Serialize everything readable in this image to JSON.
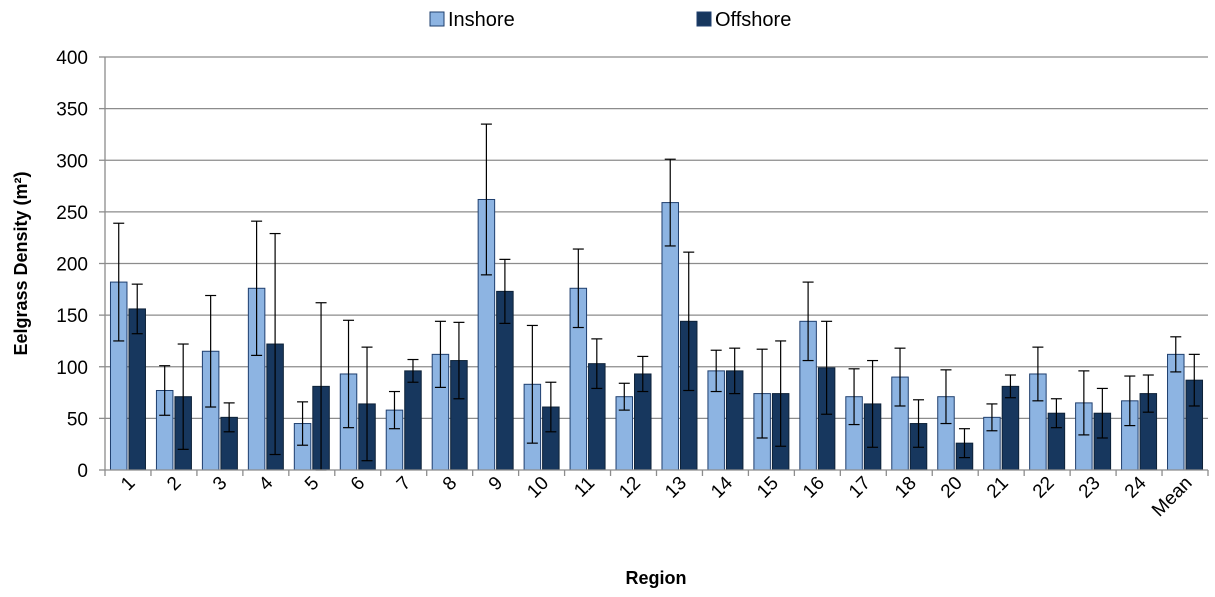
{
  "chart_data": {
    "type": "bar",
    "title": "",
    "xlabel": "Region",
    "ylabel": "Eelgrass Density (m²)",
    "ylim": [
      0,
      400
    ],
    "yticks": [
      0,
      50,
      100,
      150,
      200,
      250,
      300,
      350,
      400
    ],
    "grid": true,
    "legend_position": "top",
    "categories": [
      "1",
      "2",
      "3",
      "4",
      "5",
      "6",
      "7",
      "8",
      "9",
      "10",
      "11",
      "12",
      "13",
      "14",
      "15",
      "16",
      "17",
      "18",
      "20",
      "21",
      "22",
      "23",
      "24",
      "Mean"
    ],
    "series": [
      {
        "name": "Inshore",
        "color": "#8DB4E2",
        "values": [
          182,
          77,
          115,
          176,
          45,
          93,
          58,
          112,
          262,
          83,
          176,
          71,
          259,
          96,
          74,
          144,
          71,
          90,
          71,
          51,
          93,
          65,
          67,
          112
        ],
        "error": [
          57,
          24,
          54,
          65,
          21,
          52,
          18,
          32,
          73,
          57,
          38,
          13,
          42,
          20,
          43,
          38,
          27,
          28,
          26,
          13,
          26,
          31,
          24,
          17
        ]
      },
      {
        "name": "Offshore",
        "color": "#17375E",
        "values": [
          156,
          71,
          51,
          122,
          81,
          64,
          96,
          106,
          173,
          61,
          103,
          93,
          144,
          96,
          74,
          99,
          64,
          45,
          26,
          81,
          55,
          55,
          74,
          87
        ],
        "error": [
          24,
          51,
          14,
          107,
          81,
          55,
          11,
          37,
          31,
          24,
          24,
          17,
          67,
          22,
          51,
          45,
          42,
          23,
          14,
          11,
          14,
          24,
          18,
          25
        ]
      }
    ]
  }
}
